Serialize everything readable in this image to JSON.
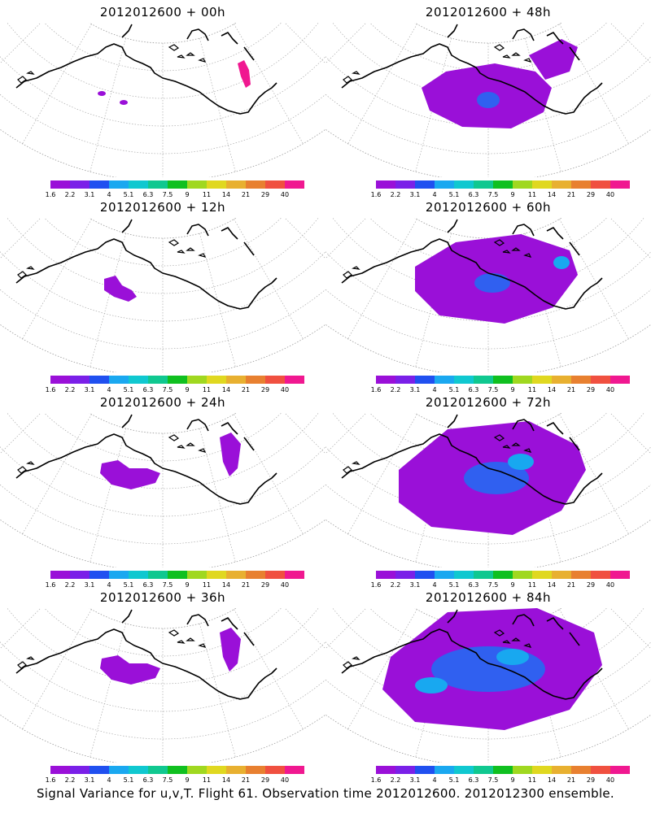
{
  "panels": [
    {
      "title": "2012012600 + 00h",
      "level": 0
    },
    {
      "title": "2012012600 + 48h",
      "level": 3
    },
    {
      "title": "2012012600 + 12h",
      "level": 1
    },
    {
      "title": "2012012600 + 60h",
      "level": 4
    },
    {
      "title": "2012012600 + 24h",
      "level": 2
    },
    {
      "title": "2012012600 + 72h",
      "level": 5
    },
    {
      "title": "2012012600 + 36h",
      "level": 2
    },
    {
      "title": "2012012600 + 84h",
      "level": 6
    }
  ],
  "colorbar": {
    "colors": [
      "#9a10d8",
      "#7a20e8",
      "#2050f0",
      "#1aa8f0",
      "#10c8d0",
      "#10c890",
      "#10c020",
      "#a0d820",
      "#e0d820",
      "#e8b030",
      "#e88030",
      "#f05040",
      "#f01890"
    ],
    "labels": [
      "1.6",
      "2.2",
      "3.1",
      "4",
      "5.1",
      "6.3",
      "7.5",
      "9",
      "11",
      "14",
      "21",
      "29",
      "40"
    ]
  },
  "map_colors": {
    "purple": "#9a10d8",
    "blue": "#3060f0",
    "cyan": "#18a8f0",
    "magenta": "#f01890"
  },
  "footer": "Signal Variance for u,v,T. Flight 61. Observation time 2012012600. 2012012300 ensemble."
}
